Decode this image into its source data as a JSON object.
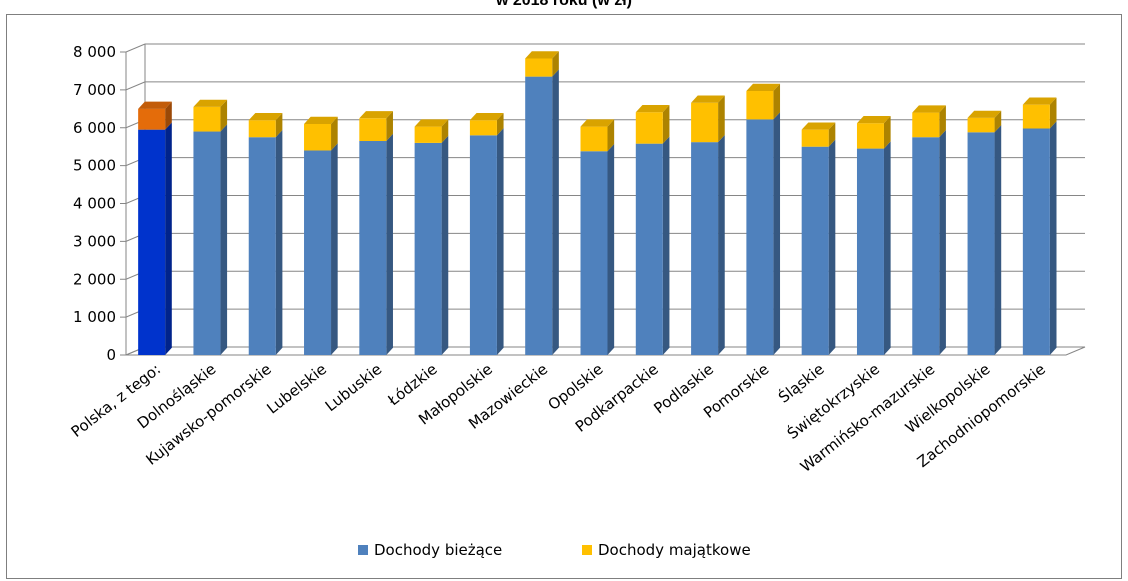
{
  "chart_data": {
    "type": "bar",
    "stacked": true,
    "style": "3d-column",
    "title": "w 2018 roku (w zł)",
    "xlabel": "",
    "ylabel": "",
    "ylim": [
      0,
      8000
    ],
    "yticks": [
      "0",
      "1 000",
      "2 000",
      "3 000",
      "4 000",
      "5 000",
      "6 000",
      "7 000",
      "8 000"
    ],
    "grid": true,
    "legend_position": "bottom",
    "categories": [
      "Polska, z tego:",
      "Dolnośląskie",
      "Kujawsko-pomorskie",
      "Lubelskie",
      "Lubuskie",
      "Łódzkie",
      "Małopolskie",
      "Mazowieckie",
      "Opolskie",
      "Podkarpackie",
      "Podlaskie",
      "Pomorskie",
      "Śląskie",
      "Świętokrzyskie",
      "Warmińsko-mazurskie",
      "Wielkopolskie",
      "Zachodniopomorskie"
    ],
    "series": [
      {
        "name": "Dochody bieżące",
        "color": "#4f81bd",
        "values": [
          5950,
          5900,
          5750,
          5400,
          5650,
          5600,
          5800,
          7350,
          5380,
          5580,
          5620,
          6220,
          5500,
          5450,
          5750,
          5880,
          5980
        ]
      },
      {
        "name": "Dochody majątkowe",
        "color": "#ffc000",
        "values": [
          550,
          650,
          450,
          700,
          600,
          430,
          400,
          480,
          650,
          830,
          1040,
          750,
          450,
          670,
          650,
          380,
          630
        ]
      }
    ],
    "highlight": {
      "index": 0,
      "colors": [
        "#0033cc",
        "#e46c0a"
      ]
    }
  }
}
